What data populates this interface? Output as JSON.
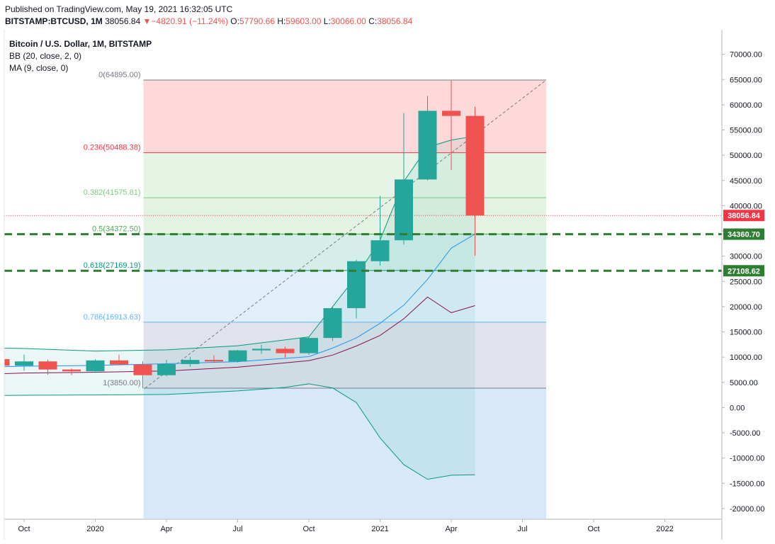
{
  "header": {
    "published": "Published on TradingView.com, May 19, 2021 16:32:05 UTC",
    "symbol": "BITSTAMP:BTCUSD, 1M",
    "last": "38056.84",
    "change_arrow": "▼",
    "change": "−4820.91 (−11.24%)",
    "o_label": "O:",
    "o_value": "57790.66",
    "h_label": "H:",
    "h_value": "59603.00",
    "l_label": "L:",
    "l_value": "30066.00",
    "c_label": "C:",
    "c_value": "38056.84",
    "down_color": "#ef5350"
  },
  "legend": {
    "title": "Bitcoin / U.S. Dollar, 1M, BITSTAMP",
    "bb": "BB (20, close, 2, 0)",
    "ma": "MA (9, close, 0)"
  },
  "chart_data": {
    "type": "candlestick",
    "title": "Bitcoin / U.S. Dollar, 1M, BITSTAMP",
    "ylim": [
      -22000,
      72000
    ],
    "y_ticks": [
      "70000.00",
      "65000.00",
      "60000.00",
      "55000.00",
      "50000.00",
      "45000.00",
      "40000.00",
      "35000.00",
      "30000.00",
      "25000.00",
      "20000.00",
      "15000.00",
      "10000.00",
      "5000.00",
      "0.00",
      "-5000.00",
      "-10000.00",
      "-15000.00",
      "-20000.00"
    ],
    "x_ticks": [
      {
        "label": "Oct",
        "month": 0
      },
      {
        "label": "2020",
        "month": 3
      },
      {
        "label": "Apr",
        "month": 6
      },
      {
        "label": "Jul",
        "month": 9
      },
      {
        "label": "Oct",
        "month": 12
      },
      {
        "label": "2021",
        "month": 15
      },
      {
        "label": "Apr",
        "month": 18
      },
      {
        "label": "Jul",
        "month": 21
      },
      {
        "label": "Oct",
        "month": 24
      },
      {
        "label": "2022",
        "month": 27
      }
    ],
    "month_index_note": "0 = Oct 2019",
    "candles": [
      {
        "m": -1,
        "o": 9600,
        "h": 10900,
        "l": 7700,
        "c": 8300
      },
      {
        "m": 0,
        "o": 8300,
        "h": 10500,
        "l": 7300,
        "c": 9150
      },
      {
        "m": 1,
        "o": 9150,
        "h": 9500,
        "l": 6500,
        "c": 7550
      },
      {
        "m": 2,
        "o": 7550,
        "h": 7750,
        "l": 6430,
        "c": 7190
      },
      {
        "m": 3,
        "o": 7190,
        "h": 9580,
        "l": 6870,
        "c": 9350
      },
      {
        "m": 4,
        "o": 9350,
        "h": 10500,
        "l": 8440,
        "c": 8530
      },
      {
        "m": 5,
        "o": 8530,
        "h": 9170,
        "l": 3850,
        "c": 6420
      },
      {
        "m": 6,
        "o": 6420,
        "h": 9470,
        "l": 6200,
        "c": 8630
      },
      {
        "m": 7,
        "o": 8630,
        "h": 10070,
        "l": 8120,
        "c": 9450
      },
      {
        "m": 8,
        "o": 9450,
        "h": 10380,
        "l": 8900,
        "c": 9140
      },
      {
        "m": 9,
        "o": 9140,
        "h": 11450,
        "l": 8960,
        "c": 11340
      },
      {
        "m": 10,
        "o": 11340,
        "h": 12470,
        "l": 10660,
        "c": 11650
      },
      {
        "m": 11,
        "o": 11650,
        "h": 12070,
        "l": 9900,
        "c": 10780
      },
      {
        "m": 12,
        "o": 10780,
        "h": 14100,
        "l": 10430,
        "c": 13800
      },
      {
        "m": 13,
        "o": 13800,
        "h": 19880,
        "l": 13200,
        "c": 19700
      },
      {
        "m": 14,
        "o": 19700,
        "h": 29300,
        "l": 17650,
        "c": 29000
      },
      {
        "m": 15,
        "o": 29000,
        "h": 41950,
        "l": 28130,
        "c": 33150
      },
      {
        "m": 16,
        "o": 33150,
        "h": 58350,
        "l": 32300,
        "c": 45200
      },
      {
        "m": 17,
        "o": 45200,
        "h": 61780,
        "l": 45000,
        "c": 58800
      },
      {
        "m": 18,
        "o": 58800,
        "h": 64895,
        "l": 47050,
        "c": 57790
      },
      {
        "m": 19,
        "o": 57790,
        "h": 59603,
        "l": 30066,
        "c": 38056.84
      }
    ],
    "ma_9": [
      [
        -1,
        6700
      ],
      [
        0,
        6850
      ],
      [
        3,
        7000
      ],
      [
        6,
        7250
      ],
      [
        9,
        8000
      ],
      [
        12,
        9300
      ],
      [
        13,
        10400
      ],
      [
        14,
        12200
      ],
      [
        15,
        14300
      ],
      [
        16,
        17600
      ],
      [
        17,
        21900
      ],
      [
        18,
        18800
      ],
      [
        19,
        20200
      ]
    ],
    "bb_basis": [
      [
        -1,
        8100
      ],
      [
        0,
        8200
      ],
      [
        3,
        8350
      ],
      [
        6,
        8700
      ],
      [
        9,
        9100
      ],
      [
        12,
        10100
      ],
      [
        13,
        11800
      ],
      [
        14,
        13800
      ],
      [
        15,
        16700
      ],
      [
        16,
        20300
      ],
      [
        17,
        25400
      ],
      [
        18,
        31600
      ],
      [
        19,
        34360
      ]
    ],
    "bb_upper": [
      [
        -1,
        11800
      ],
      [
        0,
        11700
      ],
      [
        3,
        11200
      ],
      [
        6,
        11450
      ],
      [
        9,
        12250
      ],
      [
        12,
        14000
      ],
      [
        13,
        20000
      ],
      [
        14,
        26000
      ],
      [
        15,
        33200
      ],
      [
        16,
        44800
      ],
      [
        17,
        51600
      ],
      [
        18,
        53000
      ],
      [
        19,
        53800
      ]
    ],
    "bb_lower": [
      [
        -1,
        2400
      ],
      [
        0,
        2450
      ],
      [
        3,
        2500
      ],
      [
        6,
        2600
      ],
      [
        9,
        3300
      ],
      [
        11,
        4000
      ],
      [
        12,
        4700
      ],
      [
        13,
        3900
      ],
      [
        14,
        1000
      ],
      [
        15,
        -6000
      ],
      [
        16,
        -11300
      ],
      [
        17,
        -14200
      ],
      [
        18,
        -13400
      ],
      [
        19,
        -13300
      ]
    ],
    "fib_levels": [
      {
        "ratio": "0",
        "label": "0(64895.00)",
        "value": 64895,
        "color": "#787b86"
      },
      {
        "ratio": "0.236",
        "label": "0.236(50488.38)",
        "value": 50488.38,
        "color": "#f23645"
      },
      {
        "ratio": "0.382",
        "label": "0.382(41575.81)",
        "value": 41575.81,
        "color": "#81c784"
      },
      {
        "ratio": "0.5",
        "label": "0.5(34372.50)",
        "value": 34372.5,
        "color": "#4caf50"
      },
      {
        "ratio": "0.618",
        "label": "0.618(27169.19)",
        "value": 27169.19,
        "color": "#089981"
      },
      {
        "ratio": "0.786",
        "label": "0.786(16913.63)",
        "value": 16913.63,
        "color": "#64b5f6"
      },
      {
        "ratio": "1",
        "label": "1(3850.00)",
        "value": 3850,
        "color": "#787b86"
      }
    ],
    "fib_bands": [
      {
        "from": 64895,
        "to": 50488.38,
        "color": "#fdd9d9"
      },
      {
        "from": 50488.38,
        "to": 41575.81,
        "color": "#e6f4e6"
      },
      {
        "from": 41575.81,
        "to": 34372.5,
        "color": "#e4f2e4"
      },
      {
        "from": 34372.5,
        "to": 27169.19,
        "color": "#d5eee9"
      },
      {
        "from": 27169.19,
        "to": 16913.63,
        "color": "#e1effb"
      },
      {
        "from": 16913.63,
        "to": 3850,
        "color": "#e0e3eb"
      },
      {
        "from": 3850,
        "to": -22000,
        "color": "#d6e8f9"
      }
    ],
    "fib_month_range": [
      5,
      22
    ],
    "horizontal_lines": [
      {
        "value": 34360.7,
        "label": "34360.70",
        "color": "#2e7d32"
      },
      {
        "value": 27108.62,
        "label": "27108.62",
        "color": "#2e7d32"
      }
    ],
    "price_line": {
      "value": 38056.84,
      "label": "38056.84",
      "color": "#f23645"
    },
    "up_color": "#26a69a",
    "down_color": "#ef5350",
    "bb_color": "#089981",
    "ma_color": "#880e4f",
    "basis_color": "#2196f3"
  }
}
